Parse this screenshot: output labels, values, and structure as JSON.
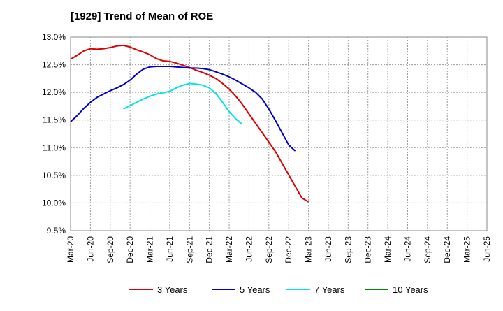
{
  "chart_data": {
    "type": "line",
    "title": "[1929]  Trend of Mean of ROE",
    "xlabel": "",
    "ylabel": "",
    "x_ticks": [
      "Mar-20",
      "Jun-20",
      "Sep-20",
      "Dec-20",
      "Mar-21",
      "Jun-21",
      "Sep-21",
      "Dec-21",
      "Mar-22",
      "Jun-22",
      "Sep-22",
      "Dec-22",
      "Mar-23",
      "Jun-23",
      "Sep-23",
      "Dec-23",
      "Mar-24",
      "Jun-24",
      "Sep-24",
      "Dec-24",
      "Mar-25",
      "Jun-25"
    ],
    "y_ticks": [
      "9.5%",
      "10.0%",
      "10.5%",
      "11.0%",
      "11.5%",
      "12.0%",
      "12.5%",
      "13.0%"
    ],
    "ylim": [
      9.5,
      13.0
    ],
    "grid": true,
    "legend_position": "bottom",
    "series": [
      {
        "name": "3 Years",
        "color": "#dd0000",
        "start_index": 0,
        "values": [
          12.6,
          12.67,
          12.75,
          12.79,
          12.78,
          12.79,
          12.81,
          12.84,
          12.85,
          12.82,
          12.77,
          12.73,
          12.68,
          12.61,
          12.57,
          12.56,
          12.53,
          12.49,
          12.45,
          12.4,
          12.36,
          12.31,
          12.25,
          12.16,
          12.06,
          11.93,
          11.78,
          11.61,
          11.44,
          11.27,
          11.1,
          10.93,
          10.72,
          10.51,
          10.3,
          10.09,
          10.02
        ]
      },
      {
        "name": "5 Years",
        "color": "#0000cc",
        "start_index": 0,
        "values": [
          11.47,
          11.58,
          11.71,
          11.82,
          11.91,
          11.97,
          12.03,
          12.08,
          12.14,
          12.22,
          12.33,
          12.42,
          12.46,
          12.47,
          12.47,
          12.47,
          12.46,
          12.45,
          12.44,
          12.44,
          12.43,
          12.41,
          12.37,
          12.33,
          12.28,
          12.22,
          12.15,
          12.08,
          12.0,
          11.88,
          11.7,
          11.49,
          11.27,
          11.05,
          10.94
        ]
      },
      {
        "name": "7 Years",
        "color": "#00e5e5",
        "start_index": 8,
        "values": [
          11.7,
          11.76,
          11.82,
          11.88,
          11.93,
          11.97,
          11.99,
          12.02,
          12.08,
          12.13,
          12.16,
          12.15,
          12.13,
          12.08,
          11.98,
          11.82,
          11.65,
          11.52,
          11.42
        ]
      },
      {
        "name": "10 Years",
        "color": "#008800",
        "start_index": 0,
        "values": []
      }
    ]
  }
}
